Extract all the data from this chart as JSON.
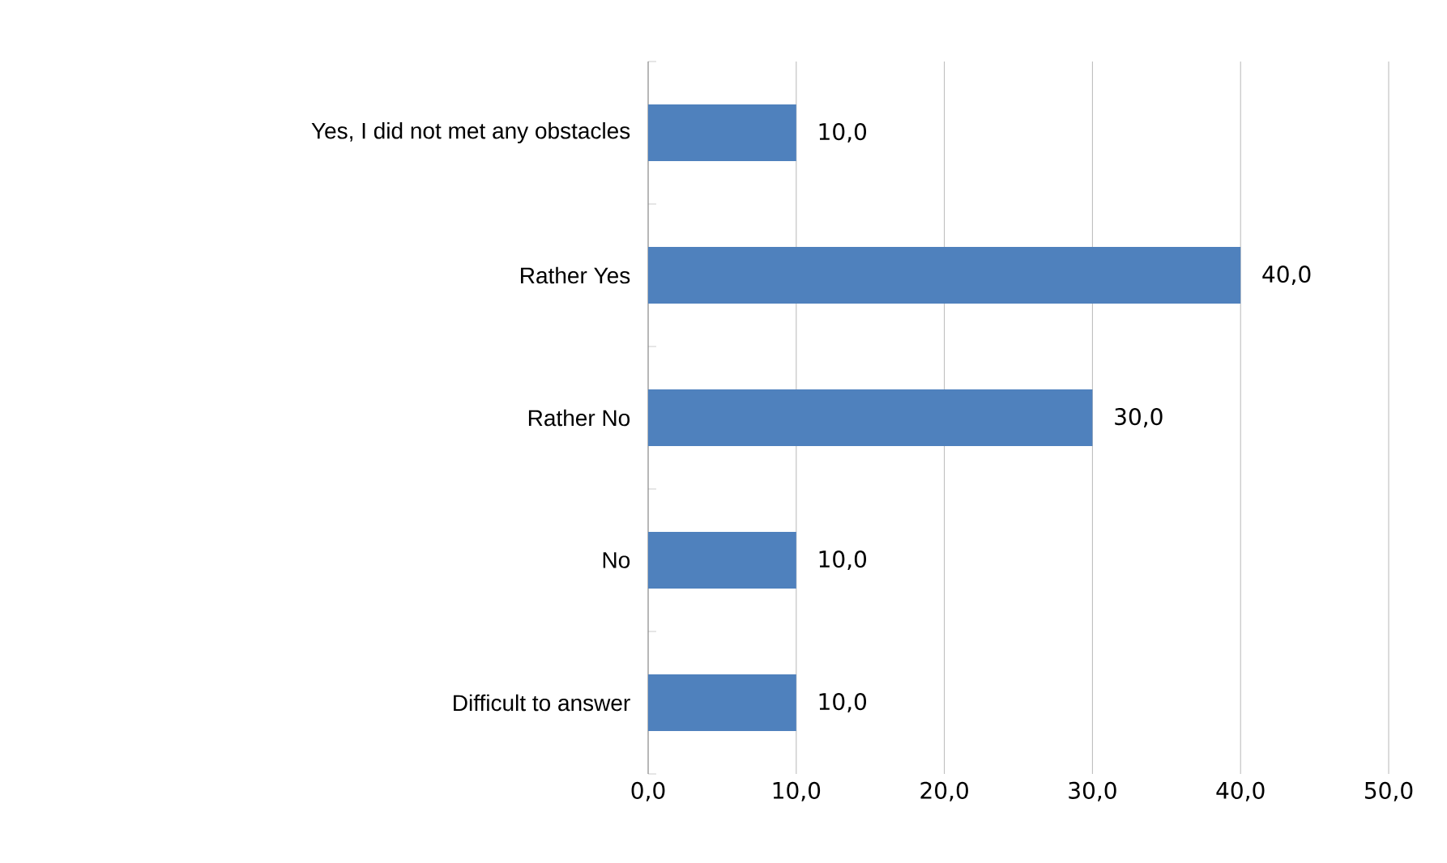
{
  "chart_data": {
    "type": "bar",
    "orientation": "horizontal",
    "categories": [
      "Yes, I did not met any obstacles",
      "Rather Yes",
      "Rather No",
      "No",
      "Difficult to answer"
    ],
    "values": [
      10,
      40,
      30,
      10,
      10
    ],
    "value_labels": [
      "10,0",
      "40,0",
      "30,0",
      "10,0",
      "10,0"
    ],
    "color": "#4f81bd",
    "xlim": [
      0,
      50
    ],
    "xticks": [
      {
        "value": 0,
        "label": "0,0"
      },
      {
        "value": 10,
        "label": "10,0"
      },
      {
        "value": 20,
        "label": "20,0"
      },
      {
        "value": 30,
        "label": "30,0"
      },
      {
        "value": 40,
        "label": "40,0"
      },
      {
        "value": 50,
        "label": "50,0"
      }
    ],
    "grid": "x"
  }
}
